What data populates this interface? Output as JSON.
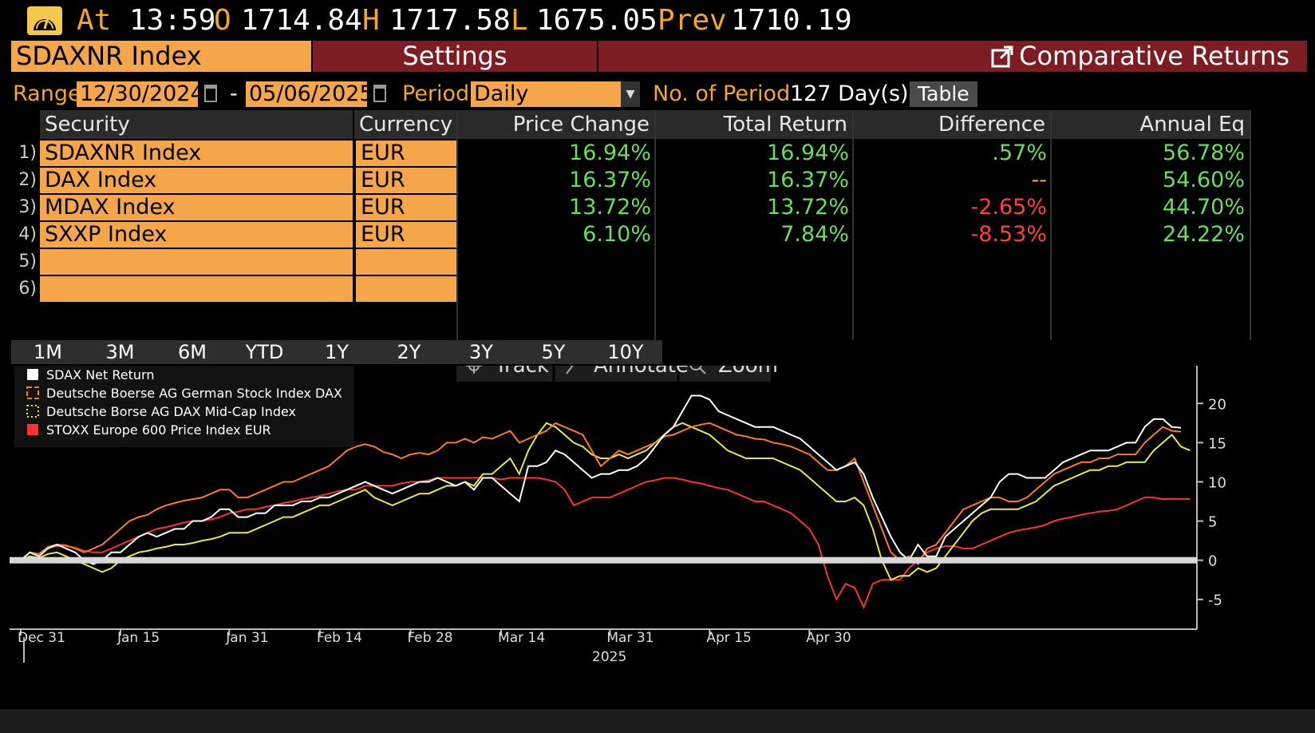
{
  "quote": {
    "at_label": "At",
    "time": "13:59",
    "open_label": "O",
    "open": "1714.84",
    "high_label": "H",
    "high": "1717.58",
    "low_label": "L",
    "low": "1675.05",
    "prev_label": "Prev",
    "prev": "1710.19"
  },
  "header": {
    "security": "SDAXNR Index",
    "settings": "Settings",
    "title": "Comparative Returns"
  },
  "range": {
    "label": "Range",
    "start": "12/30/2024",
    "dash": "-",
    "end": "05/06/2025",
    "period_label": "Period",
    "period": "Daily",
    "num_period_label": "No. of Period",
    "num_period": "127 Day(s)",
    "table_button": "Table"
  },
  "table": {
    "headers": [
      "Security",
      "Currency",
      "Price Change",
      "Total Return",
      "Difference",
      "Annual Eq"
    ],
    "rows": [
      {
        "n": "1)",
        "security": "SDAXNR Index",
        "currency": "EUR",
        "price": "16.94%",
        "total": "16.94%",
        "diff": ".57%",
        "annual": "56.78%"
      },
      {
        "n": "2)",
        "security": "DAX Index",
        "currency": "EUR",
        "price": "16.37%",
        "total": "16.37%",
        "diff": "--",
        "annual": "54.60%"
      },
      {
        "n": "3)",
        "security": "MDAX Index",
        "currency": "EUR",
        "price": "13.72%",
        "total": "13.72%",
        "diff": "-2.65%",
        "annual": "44.70%"
      },
      {
        "n": "4)",
        "security": "SXXP Index",
        "currency": "EUR",
        "price": "6.10%",
        "total": "7.84%",
        "diff": "-8.53%",
        "annual": "24.22%"
      },
      {
        "n": "5)",
        "security": "",
        "currency": "",
        "price": "",
        "total": "",
        "diff": "",
        "annual": ""
      },
      {
        "n": "6)",
        "security": "",
        "currency": "",
        "price": "",
        "total": "",
        "diff": "",
        "annual": ""
      }
    ],
    "colors": {
      "positive": "#66e05a",
      "negative": "#ff4040",
      "neutral": "#f5a623"
    }
  },
  "period_buttons": [
    "1M",
    "3M",
    "6M",
    "YTD",
    "1Y",
    "2Y",
    "3Y",
    "5Y",
    "10Y"
  ],
  "toolbar": {
    "track": "Track",
    "annotate": "Annotate",
    "zoom": "Zoom"
  },
  "chart_data": {
    "type": "line",
    "xlabel": "2025",
    "x_ticks": [
      "Dec 31",
      "Jan 15",
      "Jan 31",
      "Feb 14",
      "Feb 28",
      "Mar 14",
      "Mar 31",
      "Apr 15",
      "Apr 30"
    ],
    "y_ticks": [
      20,
      15,
      10,
      5,
      0,
      -5
    ],
    "ylim": [
      -9,
      24
    ],
    "grid": false,
    "legend_position": "top-left",
    "series": [
      {
        "name": "SDAX Net Return",
        "color": "#ffffff",
        "style": "solid",
        "values": [
          0,
          1,
          0.5,
          1.5,
          2,
          1.5,
          1,
          0,
          -0.5,
          0,
          1,
          1,
          2,
          3,
          3.5,
          3,
          3.5,
          4,
          4,
          5,
          5,
          5.5,
          6.5,
          6.5,
          5.5,
          5.5,
          6,
          6,
          7,
          7,
          7,
          7.5,
          7.5,
          8,
          8,
          8.5,
          9,
          9.5,
          10,
          9.5,
          9,
          8.5,
          9,
          9.5,
          10,
          10,
          10.5,
          10,
          9.5,
          10,
          9,
          10.5,
          10.5,
          9.5,
          8.5,
          7.5,
          12,
          12,
          12.5,
          14,
          13.5,
          12.5,
          11.5,
          10.5,
          11,
          11,
          11.5,
          11.5,
          12,
          13,
          14.5,
          16,
          17,
          19,
          21,
          21,
          20.5,
          19,
          18.5,
          18,
          17.5,
          17,
          17,
          17,
          16.5,
          16,
          15.5,
          14.5,
          13.5,
          12.5,
          11.5,
          12,
          12.5,
          11,
          8,
          5.5,
          3,
          1,
          0,
          2,
          0.5,
          0.5,
          3,
          4,
          5,
          6,
          7,
          8,
          10,
          11,
          11,
          10.5,
          10.5,
          10.5,
          11.5,
          12.5,
          13,
          13.5,
          14,
          14,
          14,
          14.5,
          15,
          15,
          17,
          18,
          18,
          17,
          16.9
        ]
      },
      {
        "name": "Deutsche Boerse AG German Stock Index DAX",
        "color": "#ff7a1a",
        "style": "dashed",
        "values": [
          0,
          1,
          0.8,
          1.7,
          2,
          1.9,
          1.5,
          1,
          1.5,
          2,
          3,
          4,
          5,
          5.5,
          5.8,
          6.5,
          7,
          7.3,
          7.6,
          7.8,
          8,
          8.5,
          9,
          9,
          8,
          8,
          8.5,
          9,
          9.5,
          10,
          10,
          10.5,
          11,
          11.5,
          12,
          13,
          14,
          14.5,
          14.8,
          14.5,
          13.8,
          13.5,
          13,
          13.5,
          13.7,
          13.5,
          14,
          15,
          15,
          15.5,
          15,
          15.7,
          15.5,
          16,
          16.5,
          15,
          15.5,
          16,
          16.5,
          17.5,
          17,
          16.5,
          16,
          14,
          12,
          13,
          14,
          13.5,
          14,
          14.5,
          15,
          15.8,
          16,
          16.5,
          17,
          17.3,
          17.5,
          17,
          16.5,
          16,
          15.8,
          15.5,
          15.4,
          15,
          14.8,
          14.5,
          14,
          13.5,
          12.5,
          11.5,
          11.5,
          12,
          13,
          10,
          7,
          4,
          1,
          0,
          0.5,
          -0.5,
          1.5,
          2,
          3.5,
          5,
          6.5,
          7,
          7.5,
          8,
          8,
          7.5,
          7.5,
          8,
          9,
          10,
          11,
          11.5,
          12,
          12.5,
          12.5,
          13,
          13,
          13.5,
          13.5,
          13.5,
          15,
          16,
          17,
          16.5,
          16.4
        ]
      },
      {
        "name": "Deutsche Borse AG DAX Mid-Cap Index",
        "color": "#e8e840",
        "style": "dotted",
        "values": [
          0,
          0.5,
          0.3,
          0.8,
          1,
          0.5,
          0,
          -0.5,
          -1,
          -1.5,
          -1,
          0,
          0.5,
          1,
          1.2,
          1.5,
          1.7,
          2,
          2,
          2.2,
          2.5,
          2.7,
          3,
          3.5,
          3.5,
          3.5,
          4,
          4.5,
          5,
          5.5,
          5.5,
          6,
          6.5,
          7,
          7,
          7.5,
          8,
          8.5,
          9,
          8,
          7.5,
          7,
          7.5,
          8,
          8.5,
          8.5,
          9,
          9.5,
          9.5,
          10,
          9.5,
          11,
          11,
          12,
          13,
          11,
          14,
          16,
          17.5,
          17,
          16,
          15,
          14.5,
          13.5,
          13,
          13,
          13.5,
          13,
          13.5,
          14,
          15,
          16,
          17,
          17.5,
          17,
          16.5,
          16,
          15,
          14,
          13.5,
          13,
          13,
          13,
          13,
          12.5,
          12,
          11.5,
          10.5,
          9.5,
          8.5,
          7.5,
          7.5,
          8,
          7,
          4,
          0,
          -2.5,
          -2,
          -2,
          -1,
          -1.5,
          -1,
          0.5,
          2,
          3.5,
          5,
          6,
          6.5,
          6.5,
          6.5,
          6.5,
          7,
          7.5,
          8.5,
          9.5,
          10,
          10.5,
          11,
          11.5,
          11.5,
          12,
          12,
          12.5,
          12.5,
          12.5,
          14,
          15,
          16,
          14.5,
          14
        ]
      },
      {
        "name": "STOXX Europe 600 Price Index EUR",
        "color": "#ff3030",
        "style": "solid",
        "values": [
          0,
          1,
          0.8,
          1.6,
          1.8,
          1.8,
          1.6,
          1.2,
          1,
          1,
          1.5,
          2,
          2.5,
          3,
          3.5,
          4,
          4.2,
          4.5,
          4.8,
          5,
          5,
          5.2,
          5.5,
          6,
          6.2,
          6.5,
          6.5,
          6.8,
          7,
          7.3,
          7.5,
          7.8,
          8,
          8.2,
          8.5,
          8.8,
          9,
          9,
          9.5,
          9.5,
          9.5,
          9.5,
          9.8,
          10,
          10,
          10.2,
          10.5,
          10.5,
          10.5,
          10.5,
          10.5,
          10.5,
          10.5,
          10.3,
          10.5,
          10.5,
          10.5,
          10.5,
          10.3,
          10,
          9,
          7,
          7.5,
          8,
          8,
          8,
          8.5,
          9,
          9.5,
          10,
          10.2,
          10.5,
          10.5,
          10.3,
          10,
          9.8,
          9.5,
          9.2,
          9,
          8.5,
          8,
          7.5,
          7.5,
          7,
          6.5,
          6,
          5,
          4,
          2,
          -2,
          -5,
          -3,
          -3.5,
          -6,
          -3,
          -2.5,
          -2.5,
          -2.5,
          -1,
          0,
          1,
          1.5,
          1.8,
          1.8,
          1.5,
          1.5,
          2,
          2.5,
          3,
          3.5,
          3.8,
          4,
          4.2,
          4.5,
          5,
          5.3,
          5.5,
          5.8,
          6,
          6.2,
          6.3,
          6.5,
          7,
          7.5,
          8,
          8,
          7.8,
          7.84,
          7.84,
          7.8
        ]
      }
    ]
  }
}
